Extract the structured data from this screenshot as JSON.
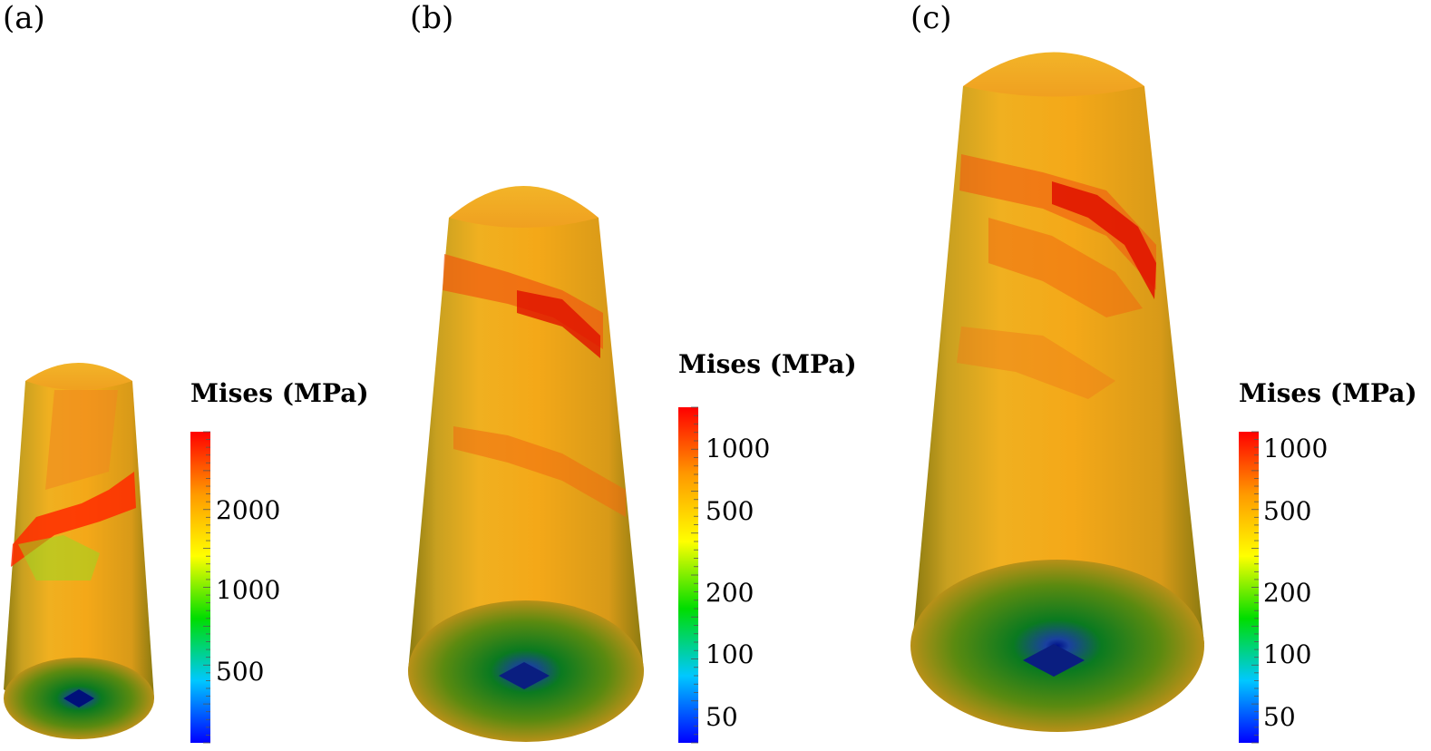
{
  "panels": [
    {
      "label": "(a)",
      "colorbar": {
        "title": "Mises (MPa)",
        "ticks": [
          "2000",
          "1000",
          "500"
        ],
        "scale": "log"
      }
    },
    {
      "label": "(b)",
      "colorbar": {
        "title": "Mises (MPa)",
        "ticks": [
          "1000",
          "500",
          "200",
          "100",
          "50"
        ],
        "scale": "log"
      }
    },
    {
      "label": "(c)",
      "colorbar": {
        "title": "Mises (MPa)",
        "ticks": [
          "1000",
          "500",
          "200",
          "100",
          "50"
        ],
        "scale": "log"
      }
    }
  ],
  "colormap": [
    "#0000ff",
    "#00c8ff",
    "#00dd00",
    "#ffff00",
    "#ff9900",
    "#ff0000"
  ]
}
